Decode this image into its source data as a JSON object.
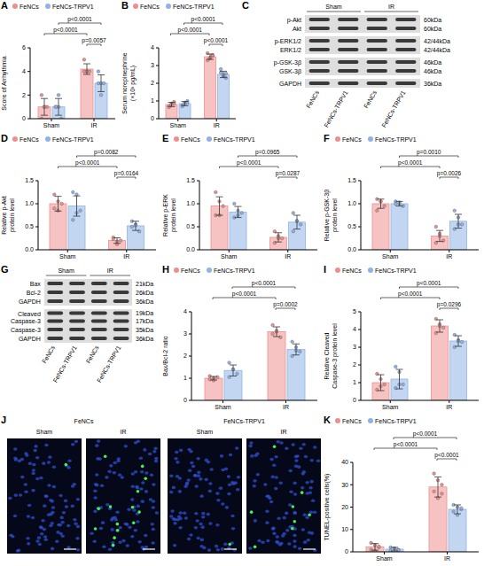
{
  "chart_data": [
    {
      "panel": "A",
      "type": "bar",
      "y_label": "Score of Arrhythmia",
      "categories": [
        "Sham",
        "IR"
      ],
      "ylim": [
        0,
        6
      ],
      "yticks": [
        0,
        2,
        4,
        6
      ],
      "legend": "top",
      "series": [
        {
          "name": "FeNCs",
          "color": "#ee8f8f",
          "values": [
            1.0,
            4.2
          ],
          "errors": [
            0.71,
            0.45
          ],
          "points": [
            [
              2,
              1,
              1,
              0,
              1
            ],
            [
              5,
              4,
              4,
              4,
              4
            ]
          ]
        },
        {
          "name": "FeNCs-TRPV1",
          "color": "#8fb3e6",
          "values": [
            1.0,
            3.0
          ],
          "errors": [
            0.71,
            0.71
          ],
          "points": [
            [
              1,
              1,
              0,
              1,
              2
            ],
            [
              4,
              3,
              3,
              3,
              2
            ]
          ]
        }
      ],
      "annotations": [
        {
          "text": "p=0.0057",
          "from": [
            1,
            0
          ],
          "to": [
            1,
            1
          ]
        },
        {
          "text": "p<0.0001",
          "from": [
            0,
            0
          ],
          "to": [
            1,
            0
          ]
        },
        {
          "text": "p<0.0001",
          "from": [
            0,
            1
          ],
          "to": [
            1,
            1
          ]
        }
      ]
    },
    {
      "panel": "B",
      "type": "bar",
      "y_label": "Serum norepinephrine (×10³ pg/mL)",
      "categories": [
        "Sham",
        "IR"
      ],
      "ylim": [
        0,
        4
      ],
      "yticks": [
        0,
        1,
        2,
        3,
        4
      ],
      "legend": "top",
      "series": [
        {
          "name": "FeNCs",
          "color": "#ee8f8f",
          "values": [
            0.8,
            3.5
          ],
          "errors": [
            0.12,
            0.15
          ],
          "points": [
            [
              0.7,
              0.85,
              0.95,
              0.65,
              0.8,
              0.85
            ],
            [
              3.7,
              3.4,
              3.55,
              3.3,
              3.45,
              3.6
            ]
          ]
        },
        {
          "name": "FeNCs-TRPV1",
          "color": "#8fb3e6",
          "values": [
            0.85,
            2.5
          ],
          "errors": [
            0.12,
            0.18
          ],
          "points": [
            [
              0.75,
              0.9,
              1.0,
              0.7,
              0.85,
              0.9
            ],
            [
              2.8,
              2.4,
              2.3,
              2.6,
              2.45,
              2.55
            ]
          ]
        }
      ],
      "annotations": [
        {
          "text": "p<0.0001",
          "from": [
            1,
            0
          ],
          "to": [
            1,
            1
          ]
        },
        {
          "text": "p<0.0001",
          "from": [
            0,
            0
          ],
          "to": [
            1,
            0
          ]
        },
        {
          "text": "p<0.0001",
          "from": [
            0,
            1
          ],
          "to": [
            1,
            1
          ]
        }
      ]
    },
    {
      "panel": "D",
      "type": "bar",
      "y_label": "Relative p-Akt protein level",
      "categories": [
        "Sham",
        "IR"
      ],
      "ylim": [
        0,
        1.5
      ],
      "yticks": [
        {
          "value": 0,
          "label": "0.0"
        },
        0.5,
        {
          "value": 1,
          "label": "1.0"
        },
        1.5
      ],
      "legend": "top",
      "series": [
        {
          "name": "FeNCs",
          "color": "#ee8f8f",
          "values": [
            1.0,
            0.2
          ],
          "errors": [
            0.16,
            0.06
          ],
          "points": [
            [
              1.2,
              1.05,
              1.0,
              0.9,
              0.85
            ],
            [
              0.27,
              0.12,
              0.2,
              0.23,
              0.18
            ]
          ]
        },
        {
          "name": "FeNCs-TRPV1",
          "color": "#8fb3e6",
          "values": [
            0.95,
            0.52
          ],
          "errors": [
            0.22,
            0.1
          ],
          "points": [
            [
              1.25,
              1.2,
              0.85,
              0.65,
              0.8
            ],
            [
              0.62,
              0.55,
              0.4,
              0.5,
              0.53
            ]
          ]
        }
      ],
      "annotations": [
        {
          "text": "p=0.0164",
          "from": [
            1,
            0
          ],
          "to": [
            1,
            1
          ]
        },
        {
          "text": "p<0.0001",
          "from": [
            0,
            0
          ],
          "to": [
            1,
            0
          ]
        },
        {
          "text": "p=0.0082",
          "from": [
            0,
            1
          ],
          "to": [
            1,
            1
          ]
        }
      ]
    },
    {
      "panel": "E",
      "type": "bar",
      "y_label": "Relative p-ERK protein level",
      "categories": [
        "Sham",
        "IR"
      ],
      "ylim": [
        0,
        1.5
      ],
      "yticks": [
        {
          "value": 0,
          "label": "0.0"
        },
        0.5,
        {
          "value": 1,
          "label": "1.0"
        },
        1.5
      ],
      "legend": "top",
      "series": [
        {
          "name": "FeNCs",
          "color": "#ee8f8f",
          "values": [
            0.95,
            0.27
          ],
          "errors": [
            0.2,
            0.1
          ],
          "points": [
            [
              1.25,
              1.05,
              0.95,
              0.75,
              0.75
            ],
            [
              0.4,
              0.3,
              0.25,
              0.15,
              0.25
            ]
          ]
        },
        {
          "name": "FeNCs-TRPV1",
          "color": "#8fb3e6",
          "values": [
            0.82,
            0.6
          ],
          "errors": [
            0.12,
            0.15
          ],
          "points": [
            [
              1.0,
              0.85,
              0.8,
              0.7,
              0.75
            ],
            [
              0.8,
              0.62,
              0.55,
              0.4,
              0.63
            ]
          ]
        }
      ],
      "annotations": [
        {
          "text": "p=0.0287",
          "from": [
            1,
            0
          ],
          "to": [
            1,
            1
          ]
        },
        {
          "text": "p<0.0001",
          "from": [
            0,
            0
          ],
          "to": [
            1,
            0
          ]
        },
        {
          "text": "p=0.0965",
          "from": [
            0,
            1
          ],
          "to": [
            1,
            1
          ]
        }
      ]
    },
    {
      "panel": "F",
      "type": "bar",
      "y_label": "Relative p-GSK-3β protein level",
      "categories": [
        "Sham",
        "IR"
      ],
      "ylim": [
        0,
        1.5
      ],
      "yticks": [
        {
          "value": 0,
          "label": "0.0"
        },
        0.5,
        {
          "value": 1,
          "label": "1.0"
        },
        1.5
      ],
      "legend": "top",
      "series": [
        {
          "name": "FeNCs",
          "color": "#ee8f8f",
          "values": [
            1.0,
            0.3
          ],
          "errors": [
            0.1,
            0.12
          ],
          "points": [
            [
              1.1,
              1.05,
              0.95,
              0.85,
              1.05
            ],
            [
              0.5,
              0.3,
              0.2,
              0.15,
              0.35
            ]
          ]
        },
        {
          "name": "FeNCs-TRPV1",
          "color": "#8fb3e6",
          "values": [
            1.0,
            0.62
          ],
          "errors": [
            0.05,
            0.15
          ],
          "points": [
            [
              1.05,
              1.0,
              0.95,
              1.0,
              1.03
            ],
            [
              0.85,
              0.7,
              0.55,
              0.45,
              0.55
            ]
          ]
        }
      ],
      "annotations": [
        {
          "text": "p=0.0026",
          "from": [
            1,
            0
          ],
          "to": [
            1,
            1
          ]
        },
        {
          "text": "p<0.0001",
          "from": [
            0,
            0
          ],
          "to": [
            1,
            0
          ]
        },
        {
          "text": "p=0.0010",
          "from": [
            0,
            1
          ],
          "to": [
            1,
            1
          ]
        }
      ]
    },
    {
      "panel": "H",
      "type": "bar",
      "y_label": "Bax/Bcl-2 ratio",
      "categories": [
        "Sham",
        "IR"
      ],
      "ylim": [
        0,
        4
      ],
      "yticks": [
        0,
        1,
        2,
        3,
        4
      ],
      "legend": "top",
      "series": [
        {
          "name": "FeNCs",
          "color": "#ee8f8f",
          "values": [
            1.0,
            3.1
          ],
          "errors": [
            0.08,
            0.22
          ],
          "points": [
            [
              0.95,
              1.0,
              1.05,
              1.1,
              0.9
            ],
            [
              3.4,
              3.1,
              2.85,
              3.0,
              3.15
            ]
          ]
        },
        {
          "name": "FeNCs-TRPV1",
          "color": "#8fb3e6",
          "values": [
            1.35,
            2.3
          ],
          "errors": [
            0.25,
            0.25
          ],
          "points": [
            [
              1.7,
              1.4,
              1.2,
              1.05,
              1.4
            ],
            [
              2.65,
              2.4,
              2.2,
              2.0,
              2.25
            ]
          ]
        }
      ],
      "annotations": [
        {
          "text": "p=0.0002",
          "from": [
            1,
            0
          ],
          "to": [
            1,
            1
          ]
        },
        {
          "text": "p<0.0001",
          "from": [
            0,
            0
          ],
          "to": [
            1,
            0
          ]
        },
        {
          "text": "p<0.0001",
          "from": [
            0,
            1
          ],
          "to": [
            1,
            1
          ]
        }
      ]
    },
    {
      "panel": "I",
      "type": "bar",
      "y_label": "Relative Cleaved Caspase-3 protein level",
      "categories": [
        "Sham",
        "IR"
      ],
      "ylim": [
        0,
        5
      ],
      "yticks": [
        0,
        1,
        2,
        3,
        4,
        5
      ],
      "legend": "top",
      "series": [
        {
          "name": "FeNCs",
          "color": "#ee8f8f",
          "values": [
            1.0,
            4.2
          ],
          "errors": [
            0.45,
            0.35
          ],
          "points": [
            [
              1.5,
              1.2,
              0.9,
              0.6,
              0.8
            ],
            [
              4.6,
              4.3,
              4.1,
              3.8,
              4.2
            ]
          ]
        },
        {
          "name": "FeNCs-TRPV1",
          "color": "#8fb3e6",
          "values": [
            1.2,
            3.35
          ],
          "errors": [
            0.55,
            0.3
          ],
          "points": [
            [
              1.9,
              1.6,
              0.9,
              0.7,
              0.9
            ],
            [
              3.7,
              3.4,
              3.3,
              3.0,
              3.35
            ]
          ]
        }
      ],
      "annotations": [
        {
          "text": "p=0.0296",
          "from": [
            1,
            0
          ],
          "to": [
            1,
            1
          ]
        },
        {
          "text": "p<0.0001",
          "from": [
            0,
            0
          ],
          "to": [
            1,
            0
          ]
        },
        {
          "text": "p<0.0001",
          "from": [
            0,
            1
          ],
          "to": [
            1,
            1
          ]
        }
      ]
    },
    {
      "panel": "K",
      "type": "bar",
      "y_label": "TUNEL-positive cells(%)",
      "categories": [
        "Sham",
        "IR"
      ],
      "ylim": [
        0,
        40
      ],
      "yticks": [
        0,
        10,
        20,
        30,
        40
      ],
      "legend": "top",
      "series": [
        {
          "name": "FeNCs",
          "color": "#ee8f8f",
          "values": [
            2.2,
            29
          ],
          "errors": [
            1.5,
            4.5
          ],
          "points": [
            [
              4,
              3,
              2,
              1,
              0.5,
              2.5
            ],
            [
              35,
              32,
              30,
              27,
              24,
              26
            ]
          ]
        },
        {
          "name": "FeNCs-TRPV1",
          "color": "#8fb3e6",
          "values": [
            1.2,
            19
          ],
          "errors": [
            0.8,
            2
          ],
          "points": [
            [
              2,
              1.5,
              1,
              0.5,
              1.5,
              0.7
            ],
            [
              21,
              20,
              19,
              18,
              16.5,
              19.5
            ]
          ]
        }
      ],
      "annotations": [
        {
          "text": "p<0.0001",
          "from": [
            1,
            0
          ],
          "to": [
            1,
            1
          ]
        },
        {
          "text": "p<0.0001",
          "from": [
            0,
            0
          ],
          "to": [
            1,
            0
          ]
        },
        {
          "text": "p<0.0001",
          "from": [
            0,
            1
          ],
          "to": [
            1,
            1
          ]
        }
      ]
    }
  ],
  "blots": [
    {
      "panel": "C",
      "groups": [
        "Sham",
        "IR"
      ],
      "lanes": [
        "FeNCs",
        "FeNCs-TRPV1",
        "FeNCs",
        "FeNCs-TRPV1"
      ],
      "blocks": [
        [
          {
            "label": "p-Akt",
            "sizes": [
              "60kDa"
            ]
          },
          {
            "label": "Akt",
            "sizes": [
              "60kDa"
            ]
          }
        ],
        [
          {
            "label": "p-ERK1/2",
            "sizes": [
              "42/44kDa"
            ]
          },
          {
            "label": "ERK1/2",
            "sizes": [
              "42/44kDa"
            ]
          }
        ],
        [
          {
            "label": "p-GSK-3β",
            "sizes": [
              "46kDa"
            ]
          },
          {
            "label": "GSK-3β",
            "sizes": [
              "46kDa"
            ]
          }
        ],
        [
          {
            "label": "GAPDH",
            "sizes": [
              "36kDa"
            ]
          }
        ]
      ]
    },
    {
      "panel": "G",
      "groups": [
        "Sham",
        "IR"
      ],
      "lanes": [
        "FeNCs",
        "FeNCs-TRPV1",
        "FeNCs",
        "FeNCs-TRPV1"
      ],
      "blocks": [
        [
          {
            "label": "Bax",
            "sizes": [
              "21kDa"
            ]
          },
          {
            "label": "Bcl-2",
            "sizes": [
              "26kDa"
            ]
          },
          {
            "label": "GAPDH",
            "sizes": [
              "36kDa"
            ]
          }
        ],
        [
          {
            "label": "Cleaved Caspase-3",
            "sizes": [
              "19kDa",
              "17kDa"
            ]
          },
          {
            "label": "Caspase-3",
            "sizes": [
              "35kDa"
            ]
          },
          {
            "label": "GAPDH",
            "sizes": [
              "36kDa"
            ]
          }
        ]
      ]
    }
  ],
  "images": {
    "panel": "J",
    "columns": [
      {
        "title": "FeNCs",
        "panels": [
          "Sham",
          "IR"
        ]
      },
      {
        "title": "FeNCs-TRPV1",
        "panels": [
          "Sham",
          "IR"
        ]
      }
    ]
  }
}
